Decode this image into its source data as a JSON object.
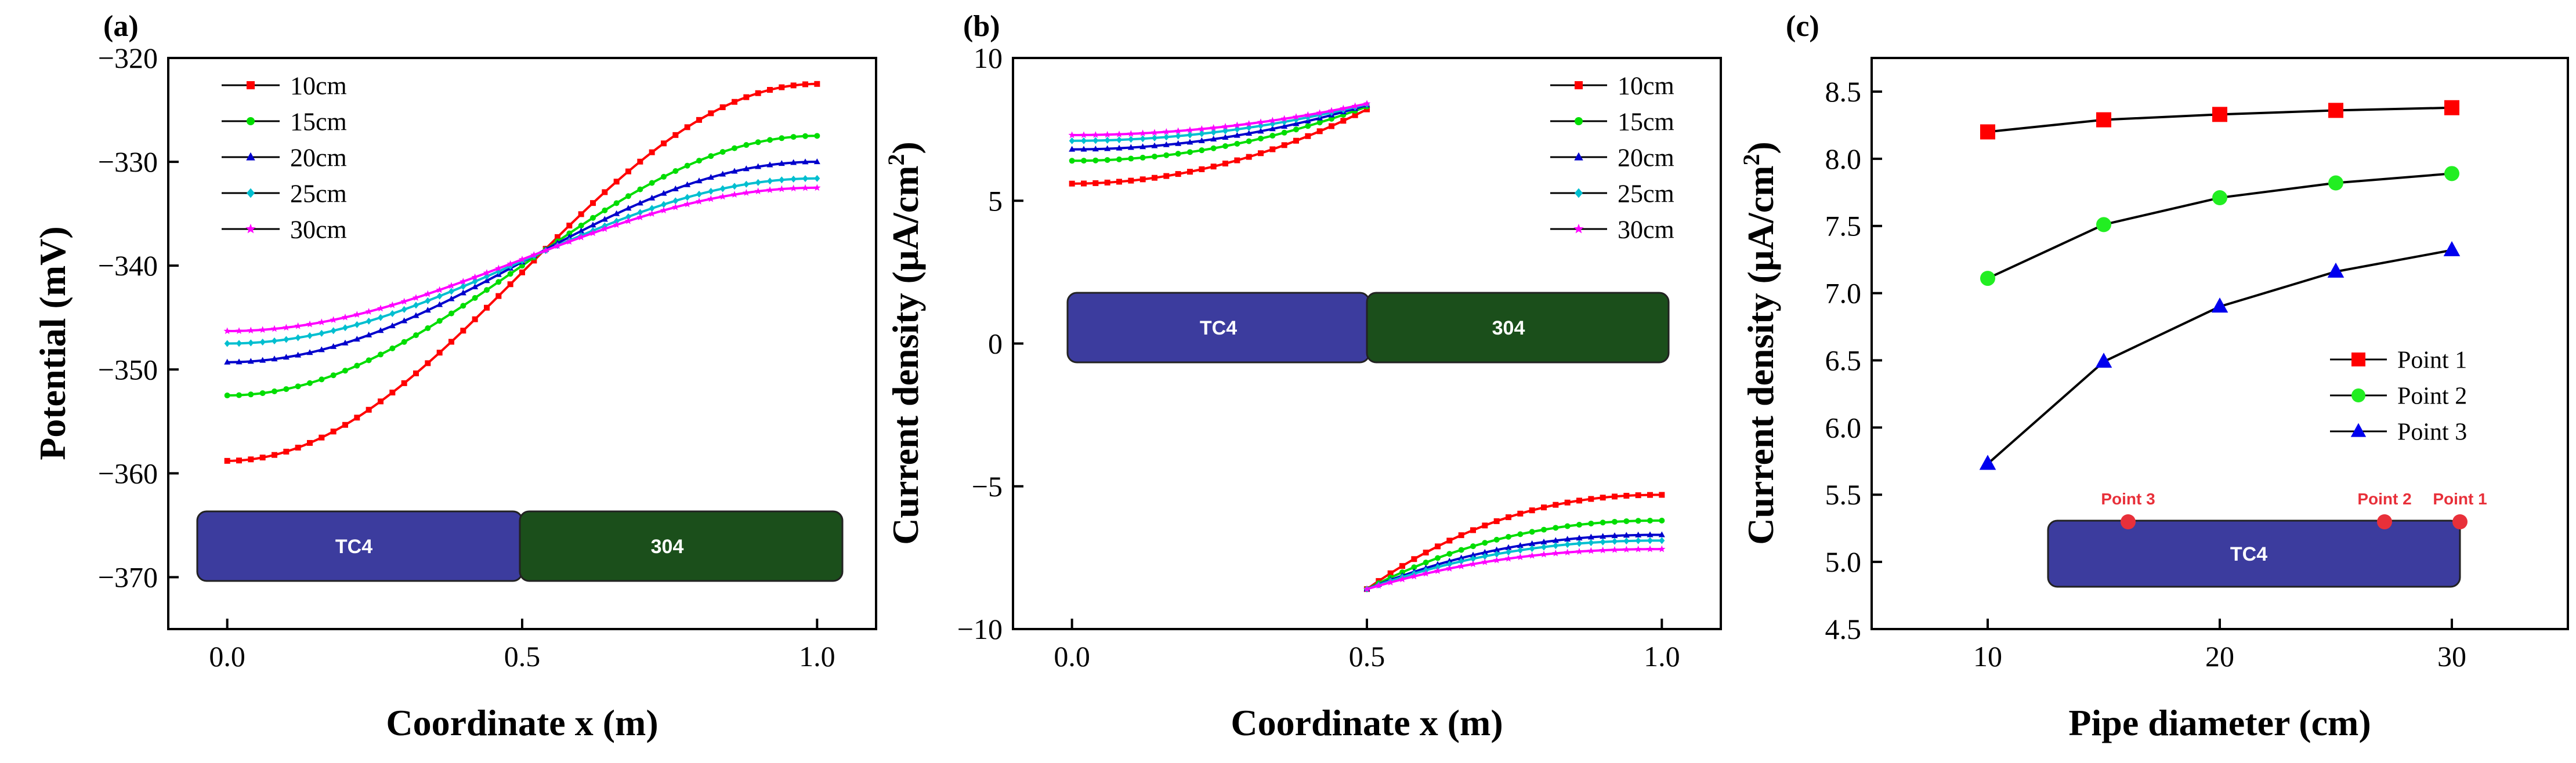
{
  "chart_data": [
    {
      "panel_label": "(a)",
      "type": "line",
      "xlabel": "Coordinate x (m)",
      "ylabel": "Potential (mV)",
      "xlim": [
        -0.1,
        1.1
      ],
      "ylim": [
        -375,
        -320
      ],
      "xticks": [
        "0.0",
        "0.5",
        "1.0"
      ],
      "yticks": [
        "-320",
        "-330",
        "-340",
        "-350",
        "-360",
        "-370"
      ],
      "series": [
        {
          "name": "10cm",
          "color": "#ff0000",
          "marker": "square",
          "start": -358.8,
          "end": -322.5
        },
        {
          "name": "15cm",
          "color": "#00dd00",
          "marker": "circle",
          "start": -352.5,
          "end": -327.5
        },
        {
          "name": "20cm",
          "color": "#0000cc",
          "marker": "triangle",
          "start": -349.3,
          "end": -330.0
        },
        {
          "name": "25cm",
          "color": "#00bfd0",
          "marker": "diamond",
          "start": -347.5,
          "end": -331.6
        },
        {
          "name": "30cm",
          "color": "#ff00ff",
          "marker": "star",
          "start": -346.3,
          "end": -332.5
        }
      ],
      "inset": {
        "left_label": "TC4",
        "right_label": "304"
      }
    },
    {
      "panel_label": "(b)",
      "type": "line",
      "xlabel": "Coordinate x (m)",
      "ylabel": "Current density (µA/cm²)",
      "ylabel_main": "Current density (µA/cm",
      "ylabel_sup": "2",
      "ylabel_end": ")",
      "xlim": [
        -0.1,
        1.1
      ],
      "ylim": [
        -10,
        10
      ],
      "xticks": [
        "0.0",
        "0.5",
        "1.0"
      ],
      "yticks": [
        "10",
        "5",
        "0",
        "-5",
        "-10"
      ],
      "series": [
        {
          "name": "10cm",
          "color": "#ff0000",
          "marker": "square",
          "left": [
            5.6,
            8.2
          ],
          "right": [
            -8.6,
            -5.3
          ]
        },
        {
          "name": "15cm",
          "color": "#00dd00",
          "marker": "circle",
          "left": [
            6.4,
            8.3
          ],
          "right": [
            -8.6,
            -6.2
          ]
        },
        {
          "name": "20cm",
          "color": "#0000cc",
          "marker": "triangle",
          "left": [
            6.8,
            8.35
          ],
          "right": [
            -8.6,
            -6.7
          ]
        },
        {
          "name": "25cm",
          "color": "#00bfd0",
          "marker": "diamond",
          "left": [
            7.1,
            8.38
          ],
          "right": [
            -8.6,
            -6.9
          ]
        },
        {
          "name": "30cm",
          "color": "#ff00ff",
          "marker": "star",
          "left": [
            7.3,
            8.4
          ],
          "right": [
            -8.6,
            -7.2
          ]
        }
      ],
      "inset": {
        "left_label": "TC4",
        "right_label": "304"
      }
    },
    {
      "panel_label": "(c)",
      "type": "line",
      "xlabel": "Pipe diameter (cm)",
      "ylabel": "Current density (µA/cm²)",
      "ylabel_main": "Current density (µA/cm",
      "ylabel_sup": "2",
      "ylabel_end": ")",
      "xlim": [
        5,
        35
      ],
      "ylim": [
        4.5,
        8.75
      ],
      "xticks": [
        "10",
        "20",
        "30"
      ],
      "yticks": [
        "8.5",
        "8.0",
        "7.5",
        "7.0",
        "6.5",
        "6.0",
        "5.5",
        "5.0",
        "4.5"
      ],
      "x": [
        10,
        15,
        20,
        25,
        30
      ],
      "series": [
        {
          "name": "Point 1",
          "color": "#ff0000",
          "marker": "square",
          "values": [
            8.2,
            8.29,
            8.33,
            8.36,
            8.38
          ]
        },
        {
          "name": "Point 2",
          "color": "#22ee22",
          "marker": "circle",
          "values": [
            7.11,
            7.51,
            7.71,
            7.82,
            7.89
          ]
        },
        {
          "name": "Point 3",
          "color": "#0000ee",
          "marker": "triangle",
          "values": [
            5.73,
            6.49,
            6.9,
            7.16,
            7.32
          ]
        }
      ],
      "inset": {
        "pipe_label": "TC4",
        "points": [
          "Point 3",
          "Point 2",
          "Point 1"
        ]
      }
    }
  ]
}
